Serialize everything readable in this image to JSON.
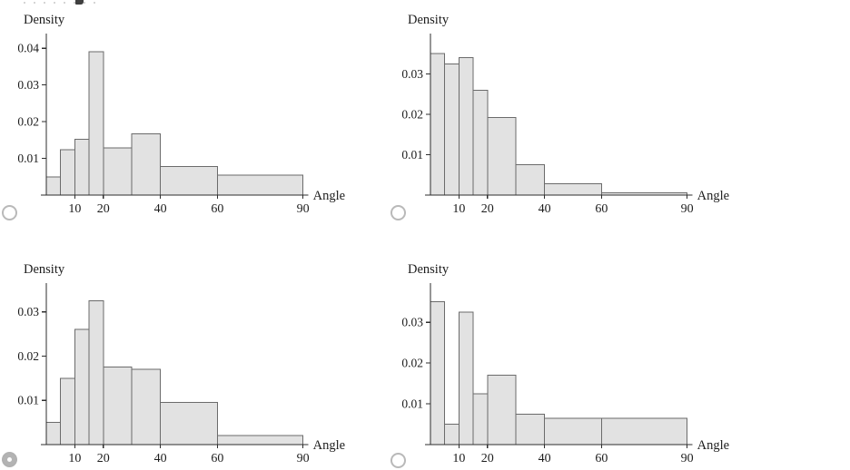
{
  "colors": {
    "bar_fill": "#e2e2e2",
    "bar_stroke": "#6b6b6b",
    "axis": "#2e2e2e",
    "text": "#1c1c1c",
    "radio_ring": "#b9b9b9",
    "radio_selected_fill": "#b3b3b3"
  },
  "chart_data": [
    {
      "type": "bar",
      "subtype": "histogram",
      "title": "",
      "xlabel": "Angle",
      "ylabel": "Density",
      "bin_edges": [
        0,
        5,
        10,
        15,
        20,
        30,
        40,
        60,
        90
      ],
      "densities": [
        0.005,
        0.0123,
        0.0152,
        0.039,
        0.0128,
        0.0167,
        0.0078,
        0.0055
      ],
      "x_ticks": [
        10,
        20,
        40,
        60,
        90
      ],
      "y_ticks": [
        0.01,
        0.02,
        0.03,
        0.04
      ],
      "xlim": [
        0,
        90
      ],
      "ylim": [
        0,
        0.044
      ],
      "grid": false,
      "legend": "none"
    },
    {
      "type": "bar",
      "subtype": "histogram",
      "title": "",
      "xlabel": "Angle",
      "ylabel": "Density",
      "bin_edges": [
        0,
        5,
        10,
        15,
        20,
        30,
        40,
        60,
        90
      ],
      "densities": [
        0.035,
        0.0325,
        0.034,
        0.026,
        0.0192,
        0.0075,
        0.0028,
        0.0006
      ],
      "x_ticks": [
        10,
        20,
        40,
        60,
        90
      ],
      "y_ticks": [
        0.01,
        0.02,
        0.03
      ],
      "xlim": [
        0,
        90
      ],
      "ylim": [
        0,
        0.04
      ],
      "grid": false,
      "legend": "none"
    },
    {
      "type": "bar",
      "subtype": "histogram",
      "title": "",
      "xlabel": "Angle",
      "ylabel": "Density",
      "bin_edges": [
        0,
        5,
        10,
        15,
        20,
        30,
        40,
        60,
        90
      ],
      "densities": [
        0.005,
        0.015,
        0.026,
        0.0325,
        0.0175,
        0.017,
        0.0095,
        0.002
      ],
      "x_ticks": [
        10,
        20,
        40,
        60,
        90
      ],
      "y_ticks": [
        0.01,
        0.02,
        0.03
      ],
      "xlim": [
        0,
        90
      ],
      "ylim": [
        0,
        0.0365
      ],
      "grid": false,
      "legend": "none"
    },
    {
      "type": "bar",
      "subtype": "histogram",
      "title": "",
      "xlabel": "Angle",
      "ylabel": "Density",
      "bin_edges": [
        0,
        5,
        10,
        15,
        20,
        30,
        40,
        60,
        90
      ],
      "densities": [
        0.035,
        0.005,
        0.0325,
        0.0125,
        0.017,
        0.0075,
        0.0065,
        0.0065
      ],
      "x_ticks": [
        10,
        20,
        40,
        60,
        90
      ],
      "y_ticks": [
        0.01,
        0.02,
        0.03
      ],
      "xlim": [
        0,
        90
      ],
      "ylim": [
        0,
        0.0396
      ],
      "grid": false,
      "legend": "none"
    }
  ],
  "answer_options": [
    {
      "position": "top-left",
      "selected": false
    },
    {
      "position": "top-right",
      "selected": false
    },
    {
      "position": "bottom-left",
      "selected": true
    },
    {
      "position": "bottom-right",
      "selected": false
    }
  ]
}
